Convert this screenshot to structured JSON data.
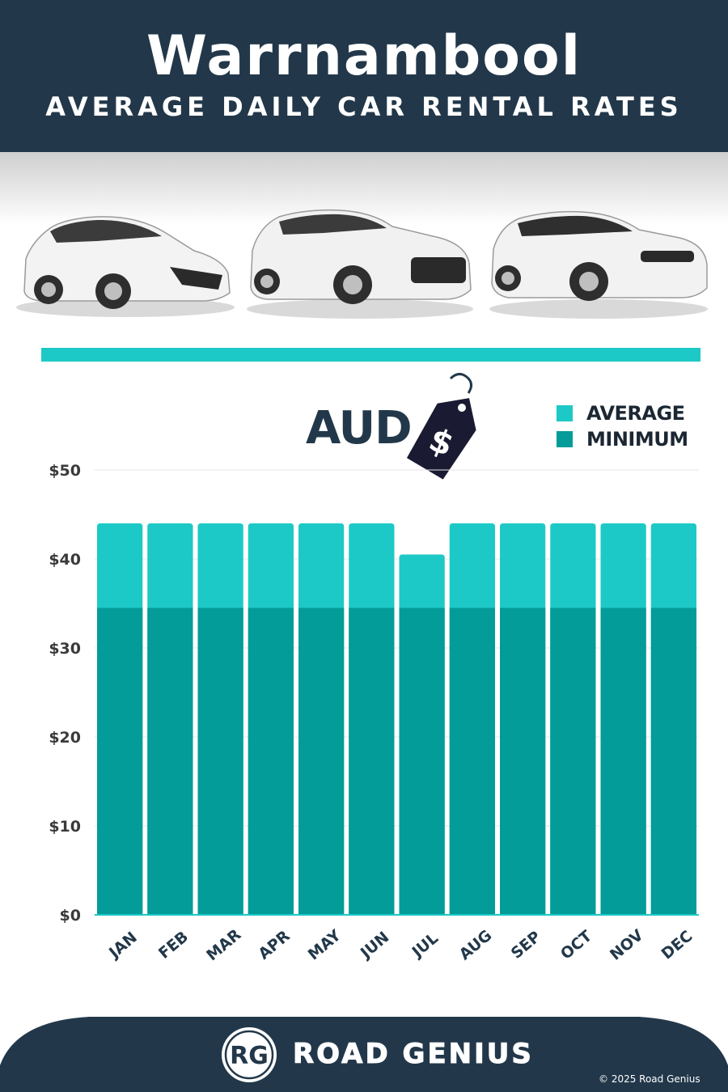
{
  "header": {
    "title": "Warrnambool",
    "subtitle": "AVERAGE DAILY CAR RENTAL RATES"
  },
  "currency": {
    "code": "AUD",
    "tag_symbol": "$"
  },
  "legend": {
    "average_label": "AVERAGE",
    "minimum_label": "MINIMUM"
  },
  "colors": {
    "header_bg": "#22384a",
    "average": "#1dc9c6",
    "minimum": "#039c98",
    "divider": "#1dc9c6"
  },
  "chart_data": {
    "type": "bar",
    "stacked_overlay": true,
    "categories": [
      "JAN",
      "FEB",
      "MAR",
      "APR",
      "MAY",
      "JUN",
      "JUL",
      "AUG",
      "SEP",
      "OCT",
      "NOV",
      "DEC"
    ],
    "series": [
      {
        "name": "AVERAGE",
        "values": [
          44,
          44,
          44,
          44,
          44,
          44,
          40.5,
          44,
          44,
          44,
          44,
          44
        ]
      },
      {
        "name": "MINIMUM",
        "values": [
          34.5,
          34.5,
          34.5,
          34.5,
          34.5,
          34.5,
          34.5,
          34.5,
          34.5,
          34.5,
          34.5,
          34.5
        ]
      }
    ],
    "y_ticks": [
      "$0",
      "$10",
      "$20",
      "$30",
      "$40",
      "$50"
    ],
    "ylim": [
      0,
      50
    ],
    "grid": true,
    "legend_position": "top-right"
  },
  "footer": {
    "logo_text": "RG",
    "brand": "ROAD GENIUS",
    "copyright": "© 2025 Road Genius"
  }
}
